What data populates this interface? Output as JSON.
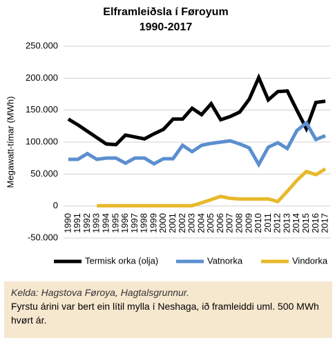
{
  "chart_data": {
    "type": "line",
    "title": "Elframleiðsla í Føroyum",
    "subtitle": "1990-2017",
    "y_label": "Megawatt-tímar (MWh)",
    "categories": [
      "1990",
      "1991",
      "1992",
      "1993",
      "1994",
      "1995",
      "1996",
      "1997",
      "1998",
      "1999",
      "2000",
      "2001",
      "2002",
      "2003",
      "2004",
      "2005",
      "2006",
      "2007",
      "2008",
      "2009",
      "2010",
      "2011",
      "2012",
      "2013",
      "2014",
      "2015",
      "2016",
      "2017"
    ],
    "series": [
      {
        "name": "Termisk orka (olja)",
        "color": "#000000",
        "values": [
          136000,
          127000,
          117000,
          107000,
          97000,
          96000,
          111000,
          108000,
          105000,
          113000,
          120000,
          136000,
          136000,
          153000,
          143000,
          160000,
          135000,
          140000,
          147000,
          167000,
          201000,
          166000,
          179000,
          180000,
          150000,
          121000,
          162000,
          164000
        ]
      },
      {
        "name": "Vatnorka",
        "color": "#5b8fcf",
        "values": [
          73000,
          73000,
          82000,
          73000,
          75000,
          75000,
          67000,
          75000,
          75000,
          66000,
          74000,
          74000,
          95000,
          85000,
          95000,
          98000,
          100000,
          102000,
          97000,
          91000,
          65000,
          92000,
          99000,
          90000,
          118000,
          130000,
          104000,
          110000
        ]
      },
      {
        "name": "Vindorka",
        "color": "#e8b92b",
        "values": [
          null,
          null,
          null,
          500,
          500,
          500,
          500,
          500,
          500,
          500,
          500,
          500,
          500,
          500,
          5000,
          10000,
          15000,
          12000,
          11000,
          11000,
          11000,
          11000,
          7000,
          23000,
          40000,
          54000,
          49000,
          58000
        ]
      }
    ],
    "ylim": [
      -50000,
      250000
    ],
    "yticks": [
      {
        "value": -50000,
        "label": "-50.000"
      },
      0,
      {
        "value": 50000,
        "label": "50.000"
      },
      {
        "value": 100000,
        "label": "100.000"
      },
      {
        "value": 150000,
        "label": "150.000"
      },
      {
        "value": 200000,
        "label": "200.000"
      },
      {
        "value": 250000,
        "label": "250.000"
      }
    ],
    "grid": true
  },
  "footer": {
    "source": "Kelda: Hagstova Føroya, Hagtalsgrunnur.",
    "note": "Fyrstu árini var bert ein lítil mylla í Neshaga, ið framleiddi uml. 500 MWh hvørt ár."
  }
}
